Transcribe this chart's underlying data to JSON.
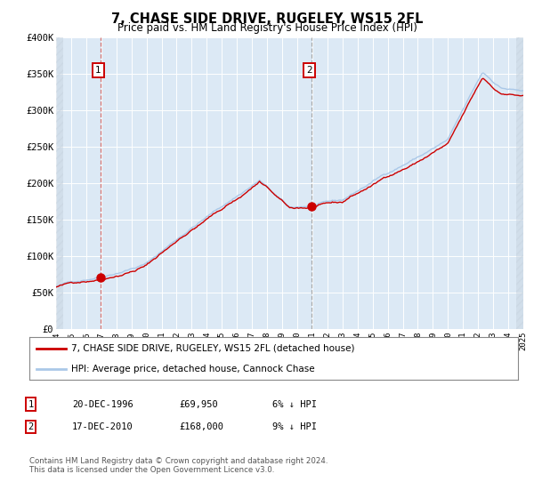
{
  "title": "7, CHASE SIDE DRIVE, RUGELEY, WS15 2FL",
  "subtitle": "Price paid vs. HM Land Registry's House Price Index (HPI)",
  "title_fontsize": 10.5,
  "subtitle_fontsize": 8.5,
  "background_color": "#ffffff",
  "plot_bg_color": "#dce9f5",
  "grid_color": "#ffffff",
  "ylim": [
    0,
    400000
  ],
  "yticks": [
    0,
    50000,
    100000,
    150000,
    200000,
    250000,
    300000,
    350000,
    400000
  ],
  "ytick_labels": [
    "£0",
    "£50K",
    "£100K",
    "£150K",
    "£200K",
    "£250K",
    "£300K",
    "£350K",
    "£400K"
  ],
  "xstart_year": 1994,
  "xend_year": 2025,
  "sale1_date_num": 1996.96,
  "sale1_price": 69950,
  "sale1_label": "1",
  "sale2_date_num": 2010.96,
  "sale2_price": 168000,
  "sale2_label": "2",
  "hpi_line_color": "#aac8e8",
  "price_line_color": "#cc0000",
  "sale_dot_color": "#cc0000",
  "vline1_color": "#cc6666",
  "vline2_color": "#999999",
  "legend_label1": "7, CHASE SIDE DRIVE, RUGELEY, WS15 2FL (detached house)",
  "legend_label2": "HPI: Average price, detached house, Cannock Chase",
  "table_row1": [
    "1",
    "20-DEC-1996",
    "£69,950",
    "6% ↓ HPI"
  ],
  "table_row2": [
    "2",
    "17-DEC-2010",
    "£168,000",
    "9% ↓ HPI"
  ],
  "footnote": "Contains HM Land Registry data © Crown copyright and database right 2024.\nThis data is licensed under the Open Government Licence v3.0.",
  "xtick_years": [
    1994,
    1995,
    1996,
    1997,
    1998,
    1999,
    2000,
    2001,
    2002,
    2003,
    2004,
    2005,
    2006,
    2007,
    2008,
    2009,
    2010,
    2011,
    2012,
    2013,
    2014,
    2015,
    2016,
    2017,
    2018,
    2019,
    2020,
    2021,
    2022,
    2023,
    2024,
    2025
  ]
}
